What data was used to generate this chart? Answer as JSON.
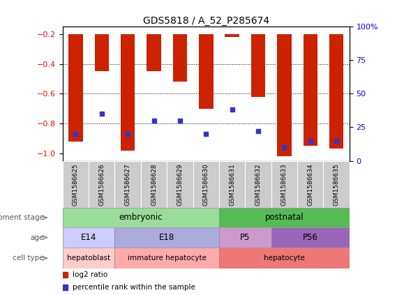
{
  "title": "GDS5818 / A_52_P285674",
  "samples": [
    "GSM1586625",
    "GSM1586626",
    "GSM1586627",
    "GSM1586628",
    "GSM1586629",
    "GSM1586630",
    "GSM1586631",
    "GSM1586632",
    "GSM1586633",
    "GSM1586634",
    "GSM1586635"
  ],
  "log2_ratio": [
    -0.92,
    -0.45,
    -0.98,
    -0.45,
    -0.52,
    -0.7,
    -0.22,
    -0.62,
    -1.02,
    -0.95,
    -0.97
  ],
  "percentile": [
    20,
    35,
    20,
    30,
    30,
    20,
    38,
    22,
    10,
    15,
    15
  ],
  "ylim_left": [
    -1.05,
    -0.15
  ],
  "yticks_left": [
    -1.0,
    -0.8,
    -0.6,
    -0.4,
    -0.2
  ],
  "ylim_right": [
    0,
    100
  ],
  "yticks_right": [
    0,
    25,
    50,
    75,
    100
  ],
  "bar_color": "#CC2200",
  "dot_color": "#3333CC",
  "plot_bg_color": "#FFFFFF",
  "grid_color": "#000000",
  "tick_area_color": "#CCCCCC",
  "dev_stage_embryonic_color": "#99DD99",
  "dev_stage_postnatal_color": "#55BB55",
  "age_e14_color": "#CCCCFF",
  "age_e18_color": "#AAAADD",
  "age_p5_color": "#CC99CC",
  "age_p56_color": "#9966BB",
  "cell_hepatoblast_color": "#FFCCCC",
  "cell_immature_color": "#FFAAAA",
  "cell_hepatocyte_color": "#EE7777",
  "legend_red_label": "log2 ratio",
  "legend_blue_label": "percentile rank within the sample"
}
